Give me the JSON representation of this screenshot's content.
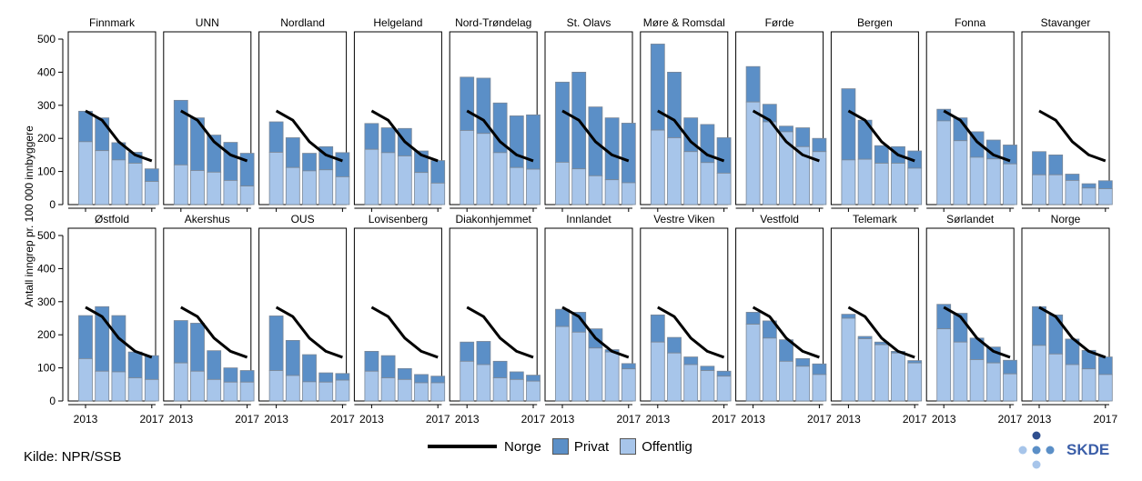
{
  "chart_data": {
    "type": "bar",
    "stacked": true,
    "ylabel": "Antall inngrep pr. 100 000 innbyggere",
    "ylim": [
      0,
      500
    ],
    "yticks": [
      0,
      100,
      200,
      300,
      400,
      500
    ],
    "years": [
      2013,
      2014,
      2015,
      2016,
      2017
    ],
    "xtick_labels": [
      "2013",
      "2017"
    ],
    "norge_line": [
      283,
      255,
      190,
      150,
      132
    ],
    "series_names": [
      "Norge",
      "Privat",
      "Offentlig"
    ],
    "colors": {
      "Privat": "#5b8fc7",
      "Offentlig": "#a7c5ea",
      "Norge": "#000000"
    },
    "panels": [
      {
        "name": "Finnmark",
        "total": [
          282,
          262,
          187,
          158,
          108
        ],
        "offentlig": [
          190,
          163,
          135,
          125,
          70
        ]
      },
      {
        "name": "UNN",
        "total": [
          315,
          262,
          210,
          188,
          155
        ],
        "offentlig": [
          120,
          103,
          98,
          73,
          56
        ]
      },
      {
        "name": "Nordland",
        "total": [
          250,
          202,
          155,
          175,
          157
        ],
        "offentlig": [
          158,
          112,
          102,
          105,
          84
        ]
      },
      {
        "name": "Helgeland",
        "total": [
          245,
          232,
          230,
          162,
          133
        ],
        "offentlig": [
          167,
          157,
          147,
          97,
          65
        ]
      },
      {
        "name": "Nord-Trøndelag",
        "total": [
          385,
          382,
          307,
          268,
          271
        ],
        "offentlig": [
          224,
          215,
          157,
          112,
          107
        ]
      },
      {
        "name": "St. Olavs",
        "total": [
          370,
          400,
          295,
          262,
          246
        ],
        "offentlig": [
          128,
          108,
          87,
          75,
          66
        ]
      },
      {
        "name": "Møre & Romsdal",
        "total": [
          485,
          400,
          262,
          242,
          202
        ],
        "offentlig": [
          225,
          202,
          160,
          127,
          95
        ]
      },
      {
        "name": "Førde",
        "total": [
          417,
          303,
          237,
          232,
          200
        ],
        "offentlig": [
          310,
          250,
          220,
          175,
          160
        ]
      },
      {
        "name": "Bergen",
        "total": [
          350,
          255,
          178,
          175,
          162
        ],
        "offentlig": [
          135,
          137,
          125,
          125,
          110
        ]
      },
      {
        "name": "Fonna",
        "total": [
          288,
          262,
          220,
          195,
          180
        ],
        "offentlig": [
          253,
          193,
          143,
          138,
          123
        ]
      },
      {
        "name": "Stavanger",
        "total": [
          160,
          150,
          92,
          63,
          72
        ],
        "offentlig": [
          90,
          90,
          73,
          50,
          48
        ]
      },
      {
        "name": "Østfold",
        "total": [
          258,
          285,
          258,
          148,
          137
        ],
        "offentlig": [
          128,
          90,
          88,
          70,
          65
        ]
      },
      {
        "name": "Akershus",
        "total": [
          243,
          235,
          152,
          100,
          92
        ],
        "offentlig": [
          115,
          90,
          65,
          57,
          57
        ]
      },
      {
        "name": "OUS",
        "total": [
          257,
          183,
          140,
          85,
          83
        ],
        "offentlig": [
          92,
          77,
          58,
          57,
          63
        ]
      },
      {
        "name": "Lovisenberg",
        "total": [
          150,
          137,
          98,
          80,
          75
        ],
        "offentlig": [
          90,
          70,
          65,
          55,
          55
        ]
      },
      {
        "name": "Diakonhjemmet",
        "total": [
          178,
          180,
          120,
          88,
          78
        ],
        "offentlig": [
          120,
          110,
          70,
          65,
          60
        ]
      },
      {
        "name": "Innlandet",
        "total": [
          277,
          268,
          218,
          155,
          113
        ],
        "offentlig": [
          225,
          208,
          160,
          148,
          97
        ]
      },
      {
        "name": "Vestre Viken",
        "total": [
          260,
          192,
          133,
          105,
          90
        ],
        "offentlig": [
          178,
          145,
          110,
          92,
          75
        ]
      },
      {
        "name": "Vestfold",
        "total": [
          268,
          242,
          185,
          128,
          112
        ],
        "offentlig": [
          232,
          190,
          120,
          105,
          80
        ]
      },
      {
        "name": "Telemark",
        "total": [
          262,
          195,
          178,
          150,
          122
        ],
        "offentlig": [
          250,
          188,
          170,
          145,
          115
        ]
      },
      {
        "name": "Sørlandet",
        "total": [
          292,
          265,
          190,
          163,
          123
        ],
        "offentlig": [
          218,
          178,
          125,
          115,
          82
        ]
      },
      {
        "name": "Norge",
        "total": [
          285,
          260,
          187,
          153,
          133
        ],
        "offentlig": [
          168,
          142,
          110,
          97,
          80
        ]
      }
    ]
  },
  "source": "Kilde: NPR/SSB",
  "legend": {
    "norge": "Norge",
    "privat": "Privat",
    "offentlig": "Offentlig"
  },
  "logo_text": "SKDE"
}
